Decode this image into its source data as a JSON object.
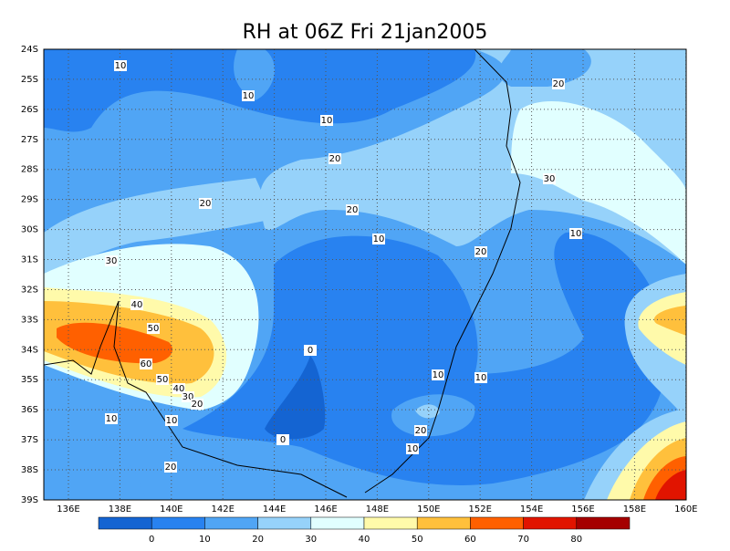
{
  "title": "RH at 06Z Fri 21jan2005",
  "axes": {
    "x_labels": [
      "136E",
      "138E",
      "140E",
      "142E",
      "144E",
      "146E",
      "148E",
      "150E",
      "152E",
      "154E",
      "156E",
      "158E",
      "160E"
    ],
    "y_labels": [
      "24S",
      "25S",
      "26S",
      "27S",
      "28S",
      "29S",
      "30S",
      "31S",
      "32S",
      "33S",
      "34S",
      "35S",
      "36S",
      "37S",
      "38S",
      "39S"
    ]
  },
  "contour_labels": [
    "10",
    "10",
    "10",
    "20",
    "20",
    "30",
    "20",
    "20",
    "10",
    "10",
    "20",
    "30",
    "40",
    "50",
    "60",
    "50",
    "40",
    "30",
    "20",
    "10",
    "10",
    "0",
    "0",
    "10",
    "10",
    "20",
    "10",
    "20"
  ],
  "colorbar": {
    "labels": [
      0,
      10,
      20,
      30,
      40,
      50,
      60,
      70,
      80
    ],
    "colors": [
      "#1464d2",
      "#2882f0",
      "#50a5f5",
      "#96d2fa",
      "#e1ffff",
      "#fffaaa",
      "#ffc03c",
      "#ff6000",
      "#e11400",
      "#a50000"
    ]
  }
}
